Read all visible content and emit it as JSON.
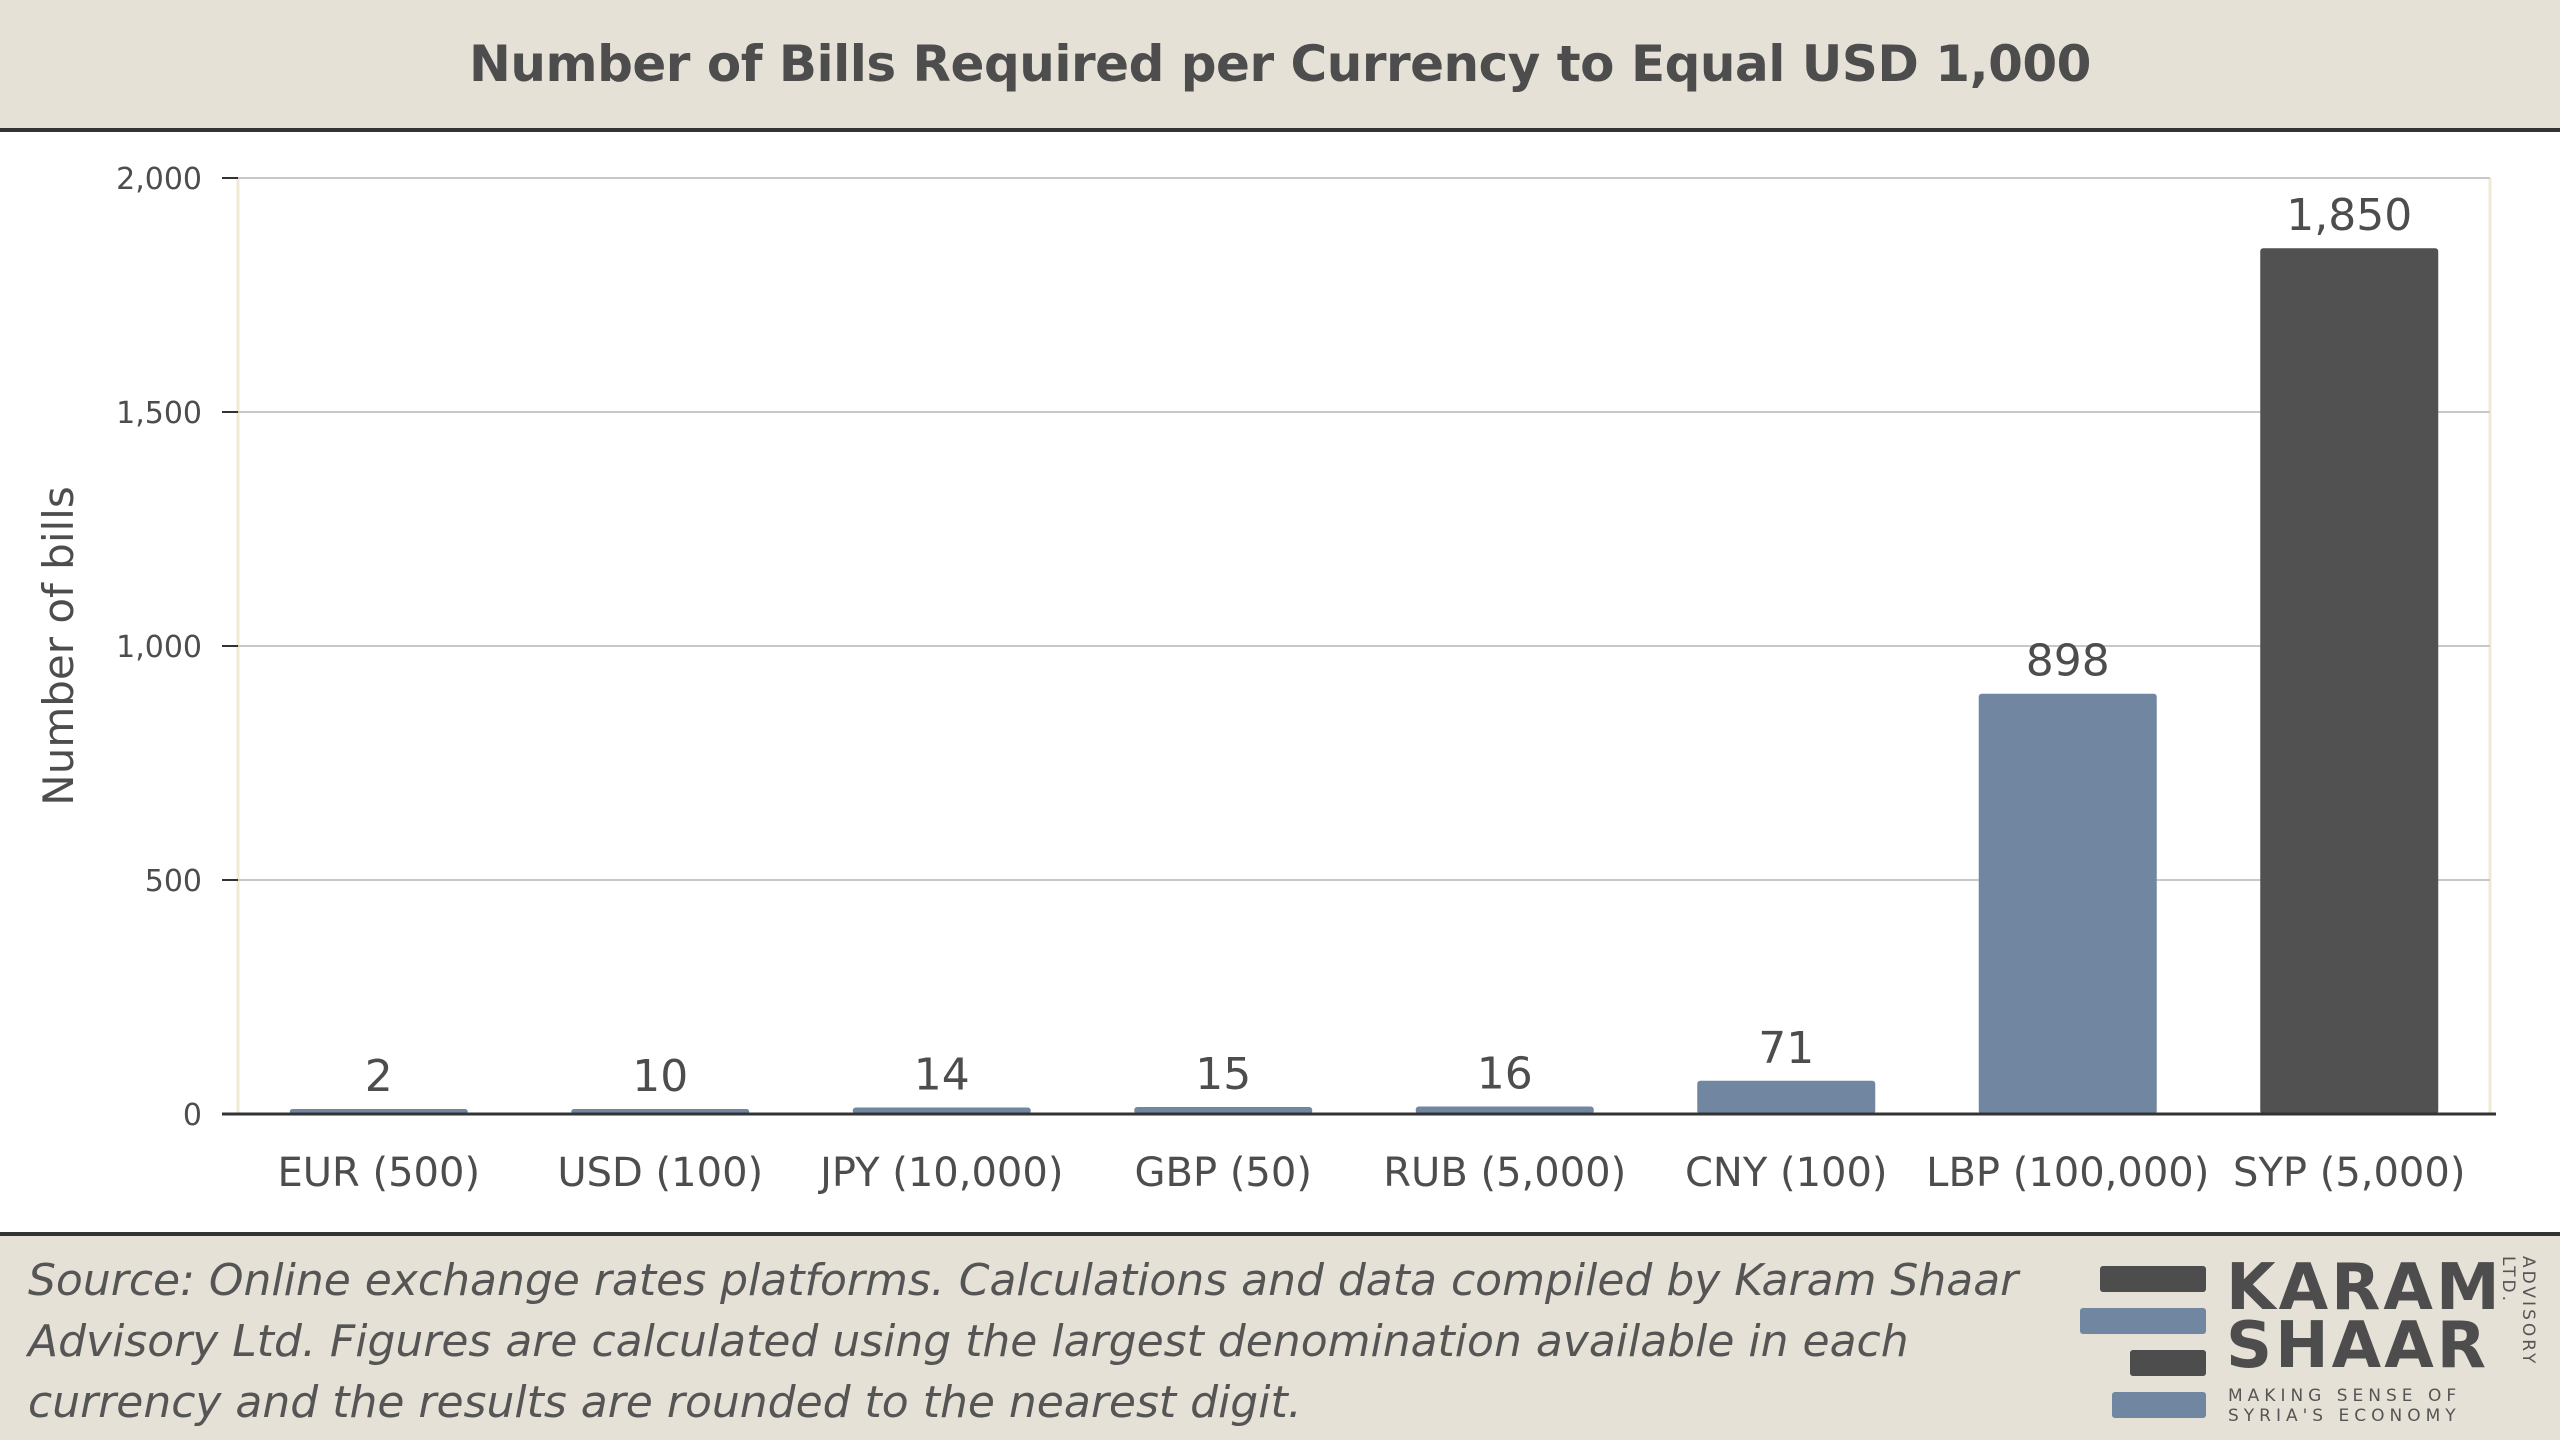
{
  "header": {
    "title": "Number of Bills Required per Currency to Equal USD 1,000"
  },
  "chart_data": {
    "type": "bar",
    "title": "Number of Bills Required per Currency to Equal USD 1,000",
    "xlabel": "",
    "ylabel": "Number of bills",
    "ylim": [
      0,
      2000
    ],
    "yticks": [
      0,
      500,
      1000,
      1500,
      2000
    ],
    "ytick_labels": [
      "0",
      "500",
      "1,000",
      "1,500",
      "2,000"
    ],
    "grid": true,
    "categories": [
      "EUR (500)",
      "USD (100)",
      "JPY (10,000)",
      "GBP (50)",
      "RUB (5,000)",
      "CNY (100)",
      "LBP (100,000)",
      "SYP (5,000)"
    ],
    "values": [
      2,
      10,
      14,
      15,
      16,
      71,
      898,
      1850
    ],
    "data_labels": [
      "2",
      "10",
      "14",
      "15",
      "16",
      "71",
      "898",
      "1,850"
    ],
    "highlighted_category": "SYP (5,000)"
  },
  "colors": {
    "bar": "#7186a0",
    "bar_highlight": "#515151",
    "band_background": "#e6e1d6",
    "text": "#4d4d4d",
    "grid": "#c8c8c8"
  },
  "footer": {
    "source": "Source: Online exchange rates platforms. Calculations and data compiled by Karam Shaar Advisory Ltd. Figures are calculated using the largest denomination available in each currency and the results are rounded to the nearest digit."
  },
  "logo": {
    "word1": "KARAM",
    "word2": "SHAAR",
    "tagline": "MAKING SENSE OF SYRIA'S ECONOMY",
    "side_text": "ADVISORY LTD."
  }
}
